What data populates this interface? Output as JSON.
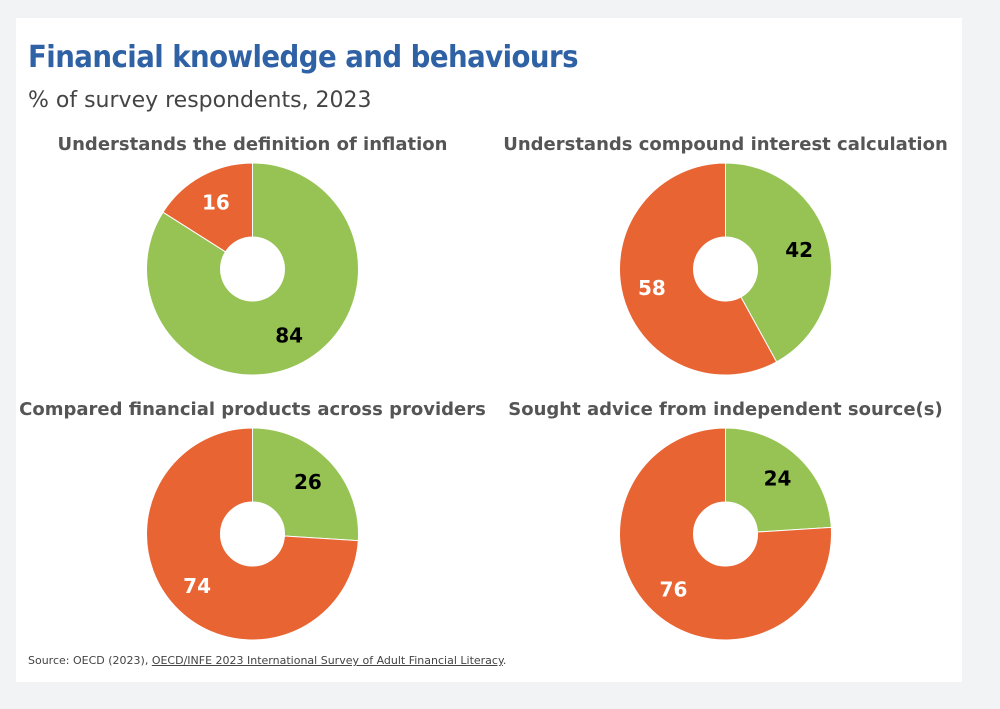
{
  "header": {
    "title": "Financial knowledge and behaviours",
    "subtitle": "% of survey respondents, 2023"
  },
  "source": {
    "prefix": "Source: OECD (2023), ",
    "link_text": "OECD/INFE 2023 International Survey of Adult Financial Literacy",
    "suffix": "."
  },
  "colors": {
    "yes": "#96c353",
    "no": "#e96433"
  },
  "chart_data": [
    {
      "type": "pie",
      "title": "Understands the definition of inflation",
      "values": [
        84,
        16
      ],
      "label_colors": [
        "#000000",
        "#ffffff"
      ]
    },
    {
      "type": "pie",
      "title": "Understands compound interest calculation",
      "values": [
        42,
        58
      ],
      "label_colors": [
        "#000000",
        "#ffffff"
      ]
    },
    {
      "type": "pie",
      "title": "Compared financial products across providers",
      "values": [
        26,
        74
      ],
      "label_colors": [
        "#000000",
        "#ffffff"
      ]
    },
    {
      "type": "pie",
      "title": "Sought advice from independent source(s)",
      "values": [
        24,
        76
      ],
      "label_colors": [
        "#000000",
        "#ffffff"
      ]
    }
  ]
}
